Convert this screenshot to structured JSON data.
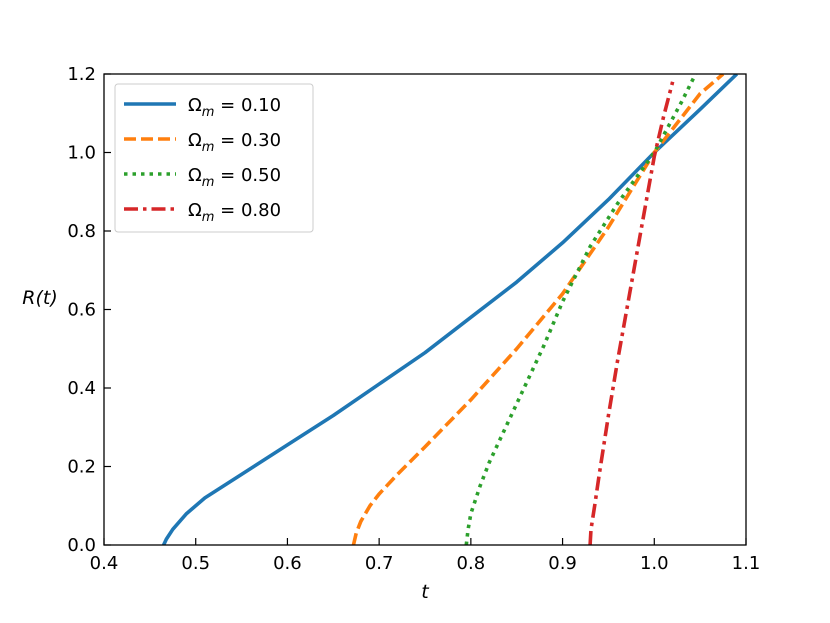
{
  "chart_data": {
    "type": "line",
    "xlabel": "t",
    "ylabel": "R(t)",
    "xlim": [
      0.4,
      1.1
    ],
    "ylim": [
      0.0,
      1.2
    ],
    "xticks": [
      0.4,
      0.5,
      0.6,
      0.7,
      0.8,
      0.9,
      1.0,
      1.1
    ],
    "yticks": [
      0.0,
      0.2,
      0.4,
      0.6,
      0.8,
      1.0,
      1.2
    ],
    "xtick_labels": [
      "0.4",
      "0.5",
      "0.6",
      "0.7",
      "0.8",
      "0.9",
      "1.0",
      "1.1"
    ],
    "ytick_labels": [
      "0.0",
      "0.2",
      "0.4",
      "0.6",
      "0.8",
      "1.0",
      "1.2"
    ],
    "grid": false,
    "legend_position": "top-left",
    "series": [
      {
        "symbol": "Ω",
        "subscript": "m",
        "relation": " = ",
        "value_text": "0.10",
        "color": "#1f77b4",
        "style": "solid",
        "x": [
          0.465,
          0.468,
          0.475,
          0.49,
          0.51,
          0.55,
          0.6,
          0.65,
          0.7,
          0.75,
          0.8,
          0.85,
          0.9,
          0.95,
          1.0,
          1.05,
          1.09
        ],
        "y": [
          0.0,
          0.015,
          0.04,
          0.08,
          0.12,
          0.18,
          0.255,
          0.33,
          0.41,
          0.49,
          0.58,
          0.67,
          0.77,
          0.88,
          1.0,
          1.11,
          1.2
        ]
      },
      {
        "symbol": "Ω",
        "subscript": "m",
        "relation": " = ",
        "value_text": "0.30",
        "color": "#ff7f0e",
        "style": "dashed",
        "x": [
          0.672,
          0.675,
          0.68,
          0.69,
          0.7,
          0.72,
          0.75,
          0.8,
          0.85,
          0.9,
          0.95,
          1.0,
          1.05,
          1.075
        ],
        "y": [
          0.0,
          0.03,
          0.06,
          0.1,
          0.13,
          0.18,
          0.25,
          0.37,
          0.5,
          0.64,
          0.81,
          1.0,
          1.15,
          1.2
        ]
      },
      {
        "symbol": "Ω",
        "subscript": "m",
        "relation": " = ",
        "value_text": "0.50",
        "color": "#2ca02c",
        "style": "dotted",
        "x": [
          0.795,
          0.797,
          0.8,
          0.81,
          0.82,
          0.84,
          0.86,
          0.88,
          0.9,
          0.93,
          0.96,
          1.0,
          1.03,
          1.045
        ],
        "y": [
          0.0,
          0.04,
          0.08,
          0.15,
          0.21,
          0.31,
          0.41,
          0.51,
          0.62,
          0.76,
          0.87,
          1.0,
          1.13,
          1.2
        ]
      },
      {
        "symbol": "Ω",
        "subscript": "m",
        "relation": " = ",
        "value_text": "0.80",
        "color": "#d62728",
        "style": "dashdot",
        "x": [
          0.93,
          0.931,
          0.935,
          0.94,
          0.95,
          0.96,
          0.97,
          0.98,
          0.99,
          1.0,
          1.01,
          1.02
        ],
        "y": [
          0.0,
          0.04,
          0.1,
          0.18,
          0.33,
          0.47,
          0.6,
          0.73,
          0.86,
          0.99,
          1.09,
          1.18
        ]
      }
    ]
  }
}
